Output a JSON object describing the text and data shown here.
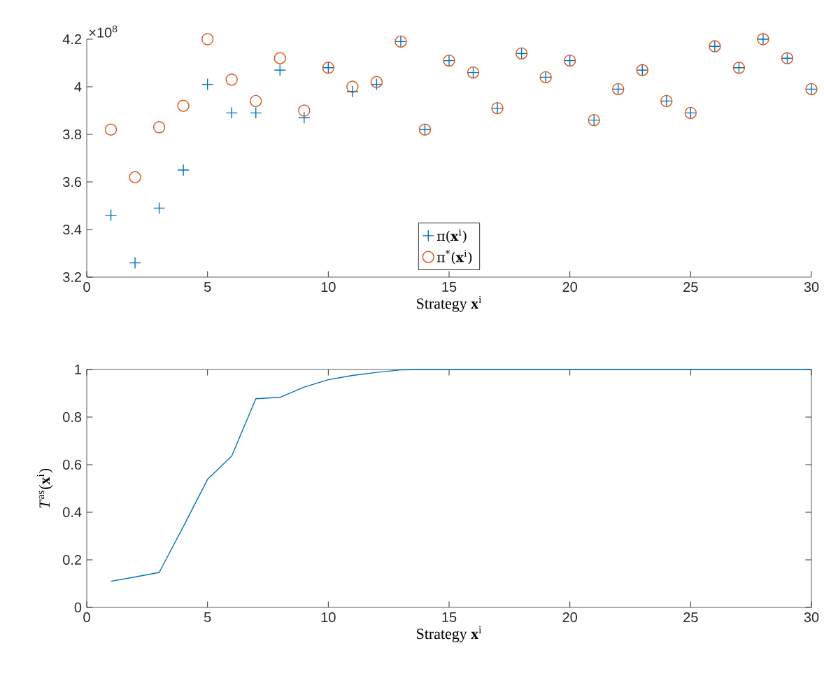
{
  "chart_data": [
    {
      "type": "scatter",
      "xlabel": "Strategy **x**$^{i}$",
      "x": [
        1,
        2,
        3,
        4,
        5,
        6,
        7,
        8,
        9,
        10,
        11,
        12,
        13,
        14,
        15,
        16,
        17,
        18,
        19,
        20,
        21,
        22,
        23,
        24,
        25,
        26,
        27,
        28,
        29,
        30
      ],
      "series": [
        {
          "name": "π(**x**$^{i}$)",
          "color": "#0072bd",
          "marker": "cross",
          "values": [
            3.46,
            3.26,
            3.49,
            3.65,
            4.01,
            3.89,
            3.89,
            4.07,
            3.87,
            4.08,
            3.98,
            4.01,
            4.19,
            3.82,
            4.11,
            4.06,
            3.91,
            4.14,
            4.04,
            4.11,
            3.86,
            3.99,
            4.07,
            3.94,
            3.89,
            4.17,
            4.08,
            4.2,
            4.12,
            3.99
          ]
        },
        {
          "name": "π$^{*}$(**x**$^{i}$)",
          "color": "#d95319",
          "marker": "circle",
          "values": [
            3.82,
            3.62,
            3.83,
            3.92,
            4.2,
            4.03,
            3.94,
            4.12,
            3.9,
            4.08,
            4.0,
            4.02,
            4.19,
            3.82,
            4.11,
            4.06,
            3.91,
            4.14,
            4.04,
            4.11,
            3.86,
            3.99,
            4.07,
            3.94,
            3.89,
            4.17,
            4.08,
            4.2,
            4.12,
            3.99
          ]
        }
      ],
      "xlim": [
        0,
        30
      ],
      "xticks": [
        0,
        5,
        10,
        15,
        20,
        25,
        30
      ],
      "ylim": [
        3.2,
        4.2
      ],
      "yticks": [
        3.2,
        3.4,
        3.6,
        3.8,
        4,
        4.2
      ],
      "annotations": [
        "×10$^{8}$"
      ],
      "legend": "bottom",
      "grid": false
    },
    {
      "type": "line",
      "xlabel": "Strategy **x**$^{i}$",
      "ylabel": "*T*$^{as}$(**x**$^{i}$)",
      "x": [
        1,
        2,
        3,
        4,
        5,
        6,
        7,
        8,
        9,
        10,
        11,
        12,
        13,
        14,
        15,
        16,
        17,
        18,
        19,
        20,
        21,
        22,
        23,
        24,
        25,
        26,
        27,
        28,
        29,
        30
      ],
      "series": [
        {
          "color": "#0072bd",
          "values": [
            0.11,
            0.128,
            0.147,
            0.34,
            0.538,
            0.636,
            0.877,
            0.883,
            0.926,
            0.957,
            0.975,
            0.988,
            0.998,
            1,
            1,
            1,
            1,
            1,
            1,
            1,
            1,
            1,
            1,
            1,
            1,
            1,
            1,
            1,
            1,
            1
          ]
        }
      ],
      "xlim": [
        0,
        30
      ],
      "xticks": [
        0,
        5,
        10,
        15,
        20,
        25,
        30
      ],
      "ylim": [
        0,
        1
      ],
      "yticks": [
        0,
        0.2,
        0.4,
        0.6,
        0.8,
        1
      ],
      "grid": false,
      "legend": false
    }
  ]
}
